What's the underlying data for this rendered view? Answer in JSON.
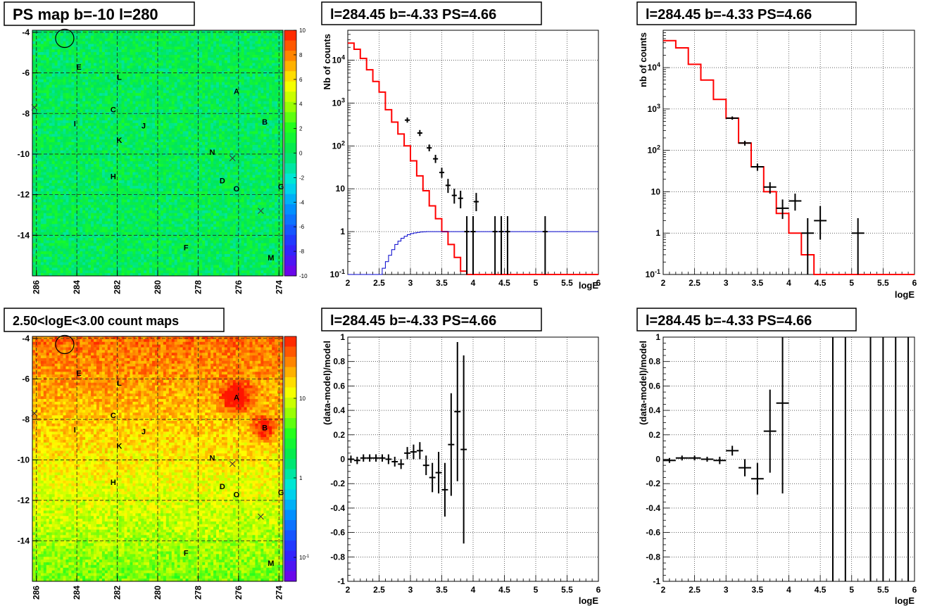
{
  "chart_data": [
    {
      "id": "ps-map",
      "type": "heatmap",
      "title": "PS map b=-10 l=280",
      "x_ticks": [
        "286",
        "284",
        "282",
        "280",
        "278",
        "276",
        "274"
      ],
      "x_tick_values": [
        286,
        284,
        282,
        280,
        278,
        276,
        274
      ],
      "xlim": [
        286.2,
        273.8
      ],
      "y_ticks": [
        "-4",
        "-6",
        "-8",
        "-10",
        "-12",
        "-14"
      ],
      "y_tick_values": [
        -4,
        -6,
        -8,
        -10,
        -12,
        -14
      ],
      "ylim": [
        -3.9,
        -16.0
      ],
      "palette_ticks": [
        "10",
        "8",
        "6",
        "4",
        "2",
        "0",
        "-2",
        "-4",
        "-6",
        "-8",
        "-10"
      ],
      "palette_values": [
        10,
        8,
        6,
        4,
        2,
        0,
        -2,
        -4,
        -6,
        -8,
        -10
      ],
      "zlim": [
        -10,
        10
      ],
      "background_level": 0.5,
      "grid": true,
      "sources": [
        {
          "label": "E",
          "l": 283.9,
          "b": -5.7
        },
        {
          "label": "L",
          "l": 281.9,
          "b": -6.2
        },
        {
          "label": "A",
          "l": 276.1,
          "b": -6.9
        },
        {
          "label": "C",
          "l": 282.2,
          "b": -7.8
        },
        {
          "label": "B",
          "l": 274.7,
          "b": -8.4
        },
        {
          "label": "I",
          "l": 284.1,
          "b": -8.5
        },
        {
          "label": "J",
          "l": 280.7,
          "b": -8.6
        },
        {
          "label": "K",
          "l": 281.9,
          "b": -9.3
        },
        {
          "label": "N",
          "l": 277.3,
          "b": -9.9
        },
        {
          "label": "H",
          "l": 282.2,
          "b": -11.1
        },
        {
          "label": "D",
          "l": 276.8,
          "b": -11.3
        },
        {
          "label": "O",
          "l": 276.1,
          "b": -11.7
        },
        {
          "label": "G",
          "l": 273.9,
          "b": -11.6
        },
        {
          "label": "F",
          "l": 278.6,
          "b": -14.6
        },
        {
          "label": "M",
          "l": 274.4,
          "b": -15.1
        }
      ],
      "crosses": [
        {
          "l": 286.1,
          "b": -7.7
        },
        {
          "l": 276.3,
          "b": -10.2
        },
        {
          "l": 274.9,
          "b": -12.8
        }
      ],
      "circle": {
        "l": 284.6,
        "b": -4.3
      }
    },
    {
      "id": "spectrum-1",
      "type": "line",
      "title": "l=284.45 b=-4.33 PS=4.66",
      "xlabel": "logE",
      "ylabel": "Nb of counts",
      "log_y": true,
      "xlim": [
        2,
        6
      ],
      "ylim": [
        0.1,
        50000
      ],
      "x_ticks": [
        "2",
        "2.5",
        "3",
        "3.5",
        "4",
        "4.5",
        "5",
        "5.5",
        "6"
      ],
      "x_tick_values": [
        2,
        2.5,
        3,
        3.5,
        4,
        4.5,
        5,
        5.5,
        6
      ],
      "y_ticks": [
        "10^-1",
        "1",
        "10",
        "10^2",
        "10^3",
        "10^4"
      ],
      "y_tick_values": [
        0.1,
        1,
        10,
        100,
        1000,
        10000
      ],
      "grid": true,
      "series": [
        {
          "color": "#ff0000",
          "style": "step",
          "edges": [
            2,
            2.1,
            2.2,
            2.3,
            2.4,
            2.5,
            2.6,
            2.7,
            2.8,
            2.9,
            3,
            3.1,
            3.2,
            3.3,
            3.4,
            3.5,
            3.6,
            3.7,
            3.8,
            3.9,
            4,
            4.1,
            4.2,
            4.3,
            6
          ],
          "values": [
            25000,
            18000,
            11000,
            6000,
            3200,
            1800,
            700,
            360,
            190,
            100,
            45,
            20,
            9,
            4,
            2,
            1,
            0.5,
            0.25,
            0.12,
            0.1,
            0.1,
            0.1,
            0.1,
            0.1
          ]
        },
        {
          "color": "#0000cc",
          "style": "step",
          "edges": [
            2,
            2.1,
            2.2,
            2.3,
            2.4,
            2.5,
            2.55,
            2.6,
            2.65,
            2.7,
            2.75,
            2.8,
            2.85,
            2.9,
            2.95,
            3,
            3.05,
            3.1,
            3.15,
            3.2,
            3.25,
            3.3,
            3.35,
            3.4,
            3.5,
            6
          ],
          "values": [
            0.1,
            0.1,
            0.1,
            0.1,
            0.1,
            0.1,
            0.14,
            0.2,
            0.28,
            0.38,
            0.5,
            0.6,
            0.7,
            0.78,
            0.85,
            0.9,
            0.93,
            0.96,
            0.98,
            0.99,
            1,
            1,
            1,
            1,
            1
          ]
        },
        {
          "color": "#000000",
          "style": "errorbar",
          "points": [
            {
              "x": 2.95,
              "y": 400,
              "lo": 350,
              "hi": 460,
              "xerr": 0.04
            },
            {
              "x": 3.15,
              "y": 200,
              "lo": 170,
              "hi": 235,
              "xerr": 0.04
            },
            {
              "x": 3.3,
              "y": 90,
              "lo": 75,
              "hi": 108,
              "xerr": 0.04
            },
            {
              "x": 3.4,
              "y": 50,
              "lo": 40,
              "hi": 62,
              "xerr": 0.04
            },
            {
              "x": 3.5,
              "y": 24,
              "lo": 18,
              "hi": 31,
              "xerr": 0.04
            },
            {
              "x": 3.6,
              "y": 12,
              "lo": 8,
              "hi": 17,
              "xerr": 0.04
            },
            {
              "x": 3.7,
              "y": 7,
              "lo": 4.5,
              "hi": 10,
              "xerr": 0.04
            },
            {
              "x": 3.8,
              "y": 6,
              "lo": 3.5,
              "hi": 9,
              "xerr": 0.04
            },
            {
              "x": 4.05,
              "y": 5,
              "lo": 3,
              "hi": 8,
              "xerr": 0.04
            },
            {
              "x": 3.9,
              "y": 1,
              "lo": 0.1,
              "hi": 2.3,
              "xerr": 0.04
            },
            {
              "x": 4.0,
              "y": 1,
              "lo": 0.1,
              "hi": 2.3,
              "xerr": 0.04
            },
            {
              "x": 4.35,
              "y": 1,
              "lo": 0.1,
              "hi": 2.3,
              "xerr": 0.04
            },
            {
              "x": 4.45,
              "y": 1,
              "lo": 0.1,
              "hi": 2.3,
              "xerr": 0.04
            },
            {
              "x": 4.55,
              "y": 1,
              "lo": 0.1,
              "hi": 2.3,
              "xerr": 0.04
            },
            {
              "x": 5.15,
              "y": 1,
              "lo": 0.1,
              "hi": 2.3,
              "xerr": 0.04
            }
          ]
        }
      ]
    },
    {
      "id": "spectrum-2",
      "type": "line",
      "title": "l=284.45 b=-4.33 PS=4.66",
      "xlabel": "logE",
      "ylabel": "nb of counts",
      "log_y": true,
      "xlim": [
        2,
        6
      ],
      "ylim": [
        0.1,
        80000
      ],
      "x_ticks": [
        "2",
        "2.5",
        "3",
        "3.5",
        "4",
        "4.5",
        "5",
        "5.5",
        "6"
      ],
      "x_tick_values": [
        2,
        2.5,
        3,
        3.5,
        4,
        4.5,
        5,
        5.5,
        6
      ],
      "y_ticks": [
        "10^-1",
        "1",
        "10",
        "10^2",
        "10^3",
        "10^4"
      ],
      "y_tick_values": [
        0.1,
        1,
        10,
        100,
        1000,
        10000
      ],
      "grid": true,
      "series": [
        {
          "color": "#ff0000",
          "style": "step",
          "edges": [
            2,
            2.2,
            2.4,
            2.6,
            2.8,
            3,
            3.2,
            3.4,
            3.6,
            3.8,
            4,
            4.2,
            4.4,
            4.6,
            6
          ],
          "values": [
            45000,
            30000,
            12000,
            5000,
            1700,
            600,
            150,
            40,
            10,
            3,
            1,
            0.3,
            0.1,
            0.1
          ]
        },
        {
          "color": "#000000",
          "style": "errorbar",
          "points": [
            {
              "x": 3.1,
              "y": 600,
              "lo": 550,
              "hi": 660,
              "xerr": 0.1
            },
            {
              "x": 3.3,
              "y": 150,
              "lo": 130,
              "hi": 170,
              "xerr": 0.1
            },
            {
              "x": 3.5,
              "y": 40,
              "lo": 32,
              "hi": 48,
              "xerr": 0.1
            },
            {
              "x": 3.7,
              "y": 13,
              "lo": 9,
              "hi": 17,
              "xerr": 0.1
            },
            {
              "x": 3.9,
              "y": 4,
              "lo": 2.2,
              "hi": 6.5,
              "xerr": 0.1
            },
            {
              "x": 4.1,
              "y": 6,
              "lo": 3.5,
              "hi": 9,
              "xerr": 0.1
            },
            {
              "x": 4.3,
              "y": 1,
              "lo": 0.1,
              "hi": 2.3,
              "xerr": 0.1
            },
            {
              "x": 4.5,
              "y": 2,
              "lo": 0.7,
              "hi": 4.5,
              "xerr": 0.1
            },
            {
              "x": 5.1,
              "y": 1,
              "lo": 0.1,
              "hi": 2.3,
              "xerr": 0.1
            }
          ]
        }
      ]
    },
    {
      "id": "count-map",
      "type": "heatmap",
      "title": "2.50<logE<3.00 count maps",
      "x_ticks": [
        "286",
        "284",
        "282",
        "280",
        "278",
        "276",
        "274"
      ],
      "x_tick_values": [
        286,
        284,
        282,
        280,
        278,
        276,
        274
      ],
      "xlim": [
        286.2,
        273.8
      ],
      "y_ticks": [
        "-4",
        "-6",
        "-8",
        "-10",
        "-12",
        "-14"
      ],
      "y_tick_values": [
        -4,
        -6,
        -8,
        -10,
        -12,
        -14
      ],
      "ylim": [
        -3.9,
        -16.0
      ],
      "palette_ticks": [
        "10",
        "1",
        "10^-1"
      ],
      "palette_values": [
        10,
        1,
        0.1
      ],
      "zlim_log": [
        0.05,
        60
      ],
      "grid": true,
      "sources": [
        {
          "label": "E",
          "l": 283.9,
          "b": -5.7
        },
        {
          "label": "L",
          "l": 281.9,
          "b": -6.2
        },
        {
          "label": "A",
          "l": 276.1,
          "b": -6.9
        },
        {
          "label": "C",
          "l": 282.2,
          "b": -7.8
        },
        {
          "label": "B",
          "l": 274.7,
          "b": -8.4
        },
        {
          "label": "I",
          "l": 284.1,
          "b": -8.5
        },
        {
          "label": "J",
          "l": 280.7,
          "b": -8.6
        },
        {
          "label": "K",
          "l": 281.9,
          "b": -9.3
        },
        {
          "label": "N",
          "l": 277.3,
          "b": -9.9
        },
        {
          "label": "H",
          "l": 282.2,
          "b": -11.1
        },
        {
          "label": "D",
          "l": 276.8,
          "b": -11.3
        },
        {
          "label": "O",
          "l": 276.1,
          "b": -11.7
        },
        {
          "label": "G",
          "l": 273.9,
          "b": -11.6
        },
        {
          "label": "F",
          "l": 278.6,
          "b": -14.6
        },
        {
          "label": "M",
          "l": 274.4,
          "b": -15.1
        }
      ],
      "crosses": [
        {
          "l": 286.1,
          "b": -7.7
        },
        {
          "l": 276.3,
          "b": -10.2
        },
        {
          "l": 274.9,
          "b": -12.8
        }
      ],
      "circle": {
        "l": 284.6,
        "b": -4.3
      }
    },
    {
      "id": "residual-1",
      "type": "scatter",
      "title": "l=284.45 b=-4.33 PS=4.66",
      "xlabel": "logE",
      "ylabel": "(data-model)/model",
      "xlim": [
        2,
        6
      ],
      "ylim": [
        -1,
        1
      ],
      "x_ticks": [
        "2",
        "2.5",
        "3",
        "3.5",
        "4",
        "4.5",
        "5",
        "5.5",
        "6"
      ],
      "x_tick_values": [
        2,
        2.5,
        3,
        3.5,
        4,
        4.5,
        5,
        5.5,
        6
      ],
      "y_ticks": [
        "1",
        "0.8",
        "0.6",
        "0.4",
        "0.2",
        "0",
        "-0.2",
        "-0.4",
        "-0.6",
        "-0.8",
        "-1"
      ],
      "y_tick_values": [
        1,
        0.8,
        0.6,
        0.4,
        0.2,
        0,
        -0.2,
        -0.4,
        -0.6,
        -0.8,
        -1
      ],
      "grid": true,
      "points": [
        {
          "x": 2.05,
          "y": 0,
          "err": 0.03
        },
        {
          "x": 2.15,
          "y": -0.01,
          "err": 0.03
        },
        {
          "x": 2.25,
          "y": 0.01,
          "err": 0.03
        },
        {
          "x": 2.35,
          "y": 0.01,
          "err": 0.03
        },
        {
          "x": 2.45,
          "y": 0.01,
          "err": 0.03
        },
        {
          "x": 2.55,
          "y": 0.01,
          "err": 0.03
        },
        {
          "x": 2.65,
          "y": 0,
          "err": 0.04
        },
        {
          "x": 2.75,
          "y": -0.02,
          "err": 0.04
        },
        {
          "x": 2.85,
          "y": -0.04,
          "err": 0.04
        },
        {
          "x": 2.95,
          "y": 0.05,
          "err": 0.05
        },
        {
          "x": 3.05,
          "y": 0.06,
          "err": 0.06
        },
        {
          "x": 3.15,
          "y": 0.07,
          "err": 0.07
        },
        {
          "x": 3.25,
          "y": -0.05,
          "err": 0.08
        },
        {
          "x": 3.35,
          "y": -0.15,
          "err": 0.12
        },
        {
          "x": 3.45,
          "y": -0.11,
          "err": 0.17
        },
        {
          "x": 3.55,
          "y": -0.25,
          "err": 0.22
        },
        {
          "x": 3.65,
          "y": 0.12,
          "err": 0.42
        },
        {
          "x": 3.75,
          "y": 0.39,
          "err": 0.57
        },
        {
          "x": 3.85,
          "y": 0.08,
          "err": 0.77
        }
      ]
    },
    {
      "id": "residual-2",
      "type": "scatter",
      "title": "l=284.45 b=-4.33 PS=4.66",
      "xlabel": "logE",
      "ylabel": "(data-model)/model",
      "xlim": [
        2,
        6
      ],
      "ylim": [
        -1,
        1
      ],
      "x_ticks": [
        "2",
        "2.5",
        "3",
        "3.5",
        "4",
        "4.5",
        "5",
        "5.5",
        "6"
      ],
      "x_tick_values": [
        2,
        2.5,
        3,
        3.5,
        4,
        4.5,
        5,
        5.5,
        6
      ],
      "y_ticks": [
        "1",
        "0.8",
        "0.6",
        "0.4",
        "0.2",
        "0",
        "-0.2",
        "-0.4",
        "-0.6",
        "-0.8",
        "-1"
      ],
      "y_tick_values": [
        1,
        0.8,
        0.6,
        0.4,
        0.2,
        0,
        -0.2,
        -0.4,
        -0.6,
        -0.8,
        -1
      ],
      "grid": true,
      "points": [
        {
          "x": 2.1,
          "y": -0.01,
          "err": 0.02,
          "xerr": 0.1
        },
        {
          "x": 2.3,
          "y": 0.01,
          "err": 0.02,
          "xerr": 0.1
        },
        {
          "x": 2.5,
          "y": 0.01,
          "err": 0.02,
          "xerr": 0.1
        },
        {
          "x": 2.7,
          "y": 0,
          "err": 0.02,
          "xerr": 0.1
        },
        {
          "x": 2.9,
          "y": -0.01,
          "err": 0.03,
          "xerr": 0.1
        },
        {
          "x": 3.1,
          "y": 0.07,
          "err": 0.04,
          "xerr": 0.1
        },
        {
          "x": 3.3,
          "y": -0.07,
          "err": 0.07,
          "xerr": 0.1
        },
        {
          "x": 3.5,
          "y": -0.16,
          "err": 0.13,
          "xerr": 0.1
        },
        {
          "x": 3.7,
          "y": 0.23,
          "err": 0.34,
          "xerr": 0.1
        },
        {
          "x": 3.9,
          "y": 0.46,
          "err": 0.74,
          "xerr": 0.1
        },
        {
          "x": 4.7,
          "y": 0,
          "err": 2.0,
          "xerr": 0
        },
        {
          "x": 4.9,
          "y": 0,
          "err": 2.0,
          "xerr": 0
        },
        {
          "x": 5.3,
          "y": 0,
          "err": 2.0,
          "xerr": 0
        },
        {
          "x": 5.5,
          "y": 0,
          "err": 2.0,
          "xerr": 0
        },
        {
          "x": 5.7,
          "y": 0,
          "err": 2.0,
          "xerr": 0
        },
        {
          "x": 5.9,
          "y": 0,
          "err": 2.0,
          "xerr": 0
        }
      ]
    }
  ]
}
